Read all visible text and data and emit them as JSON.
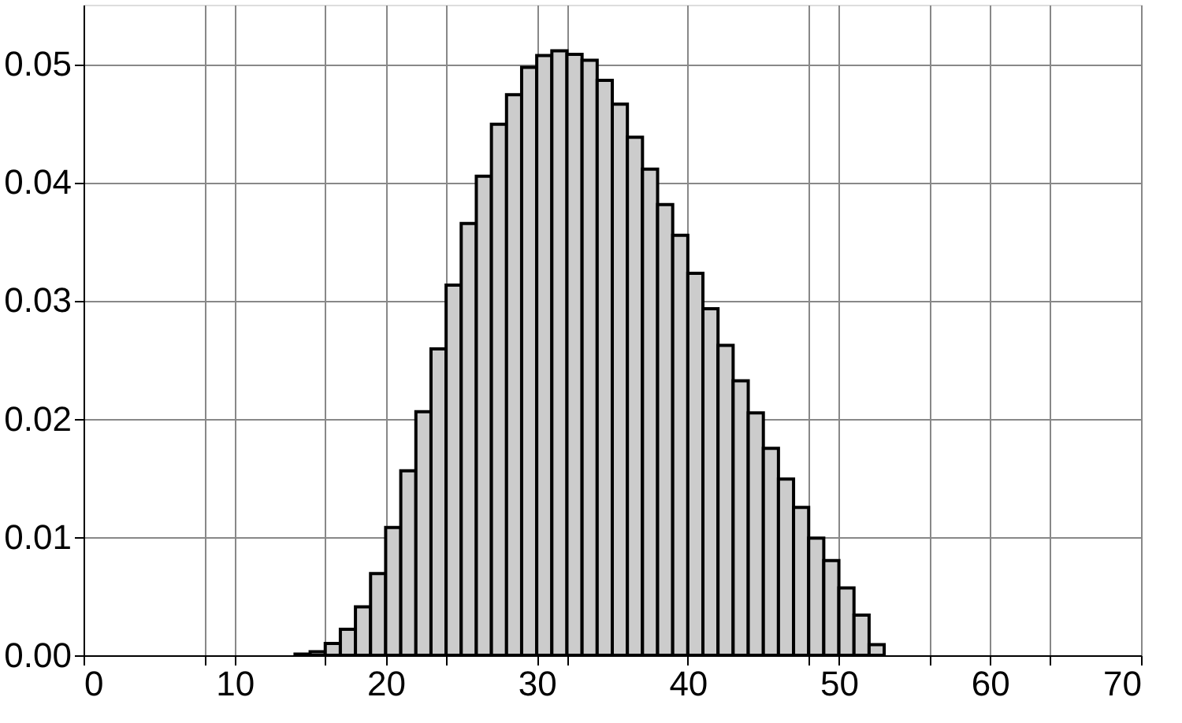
{
  "chart_data": {
    "type": "histogram",
    "bins": [
      0,
      1,
      2,
      3,
      4,
      5,
      6,
      7,
      8,
      9,
      10,
      11,
      12,
      13,
      14,
      15,
      16,
      17,
      18,
      19,
      20,
      21,
      22,
      23,
      24,
      25,
      26,
      27,
      28,
      29,
      30,
      31,
      32,
      33,
      34,
      35,
      36,
      37,
      38,
      39,
      40,
      41,
      42,
      43,
      44,
      45,
      46,
      47,
      48,
      49,
      50,
      51,
      52,
      53,
      54,
      55,
      56,
      57,
      58,
      59,
      60,
      61,
      62,
      63,
      64,
      65,
      66,
      67,
      68,
      69,
      70
    ],
    "values": [
      0,
      0,
      0,
      0,
      0,
      0,
      0,
      0,
      0,
      0,
      0,
      0,
      0,
      0,
      0.0001,
      0.0003,
      0.001,
      0.0022,
      0.0041,
      0.0069,
      0.0108,
      0.0156,
      0.0206,
      0.0259,
      0.0313,
      0.0365,
      0.0405,
      0.0449,
      0.0474,
      0.0497,
      0.0507,
      0.0511,
      0.0508,
      0.0503,
      0.0486,
      0.0466,
      0.0438,
      0.0411,
      0.0381,
      0.0355,
      0.0323,
      0.0293,
      0.0262,
      0.0232,
      0.0205,
      0.0175,
      0.0149,
      0.0125,
      0.0099,
      0.008,
      0.0057,
      0.0034,
      0.0009,
      0,
      0,
      0,
      0,
      0,
      0,
      0,
      0,
      0,
      0,
      0,
      0,
      0,
      0,
      0,
      0,
      0
    ],
    "color": "#cccccc",
    "xlim": [
      0,
      70
    ],
    "xticks": [
      0,
      10,
      20,
      30,
      40,
      50,
      60,
      70,
      {
        "value": 8,
        "label": null
      },
      {
        "value": 16,
        "label": null
      },
      {
        "value": 24,
        "label": null
      },
      {
        "value": 32,
        "label": null
      },
      {
        "value": 40,
        "label": null
      },
      {
        "value": 48,
        "label": null
      },
      {
        "value": 56,
        "label": null
      },
      {
        "value": 64,
        "label": null
      }
    ],
    "ylim": [
      0,
      0.055
    ],
    "yticks": [
      {
        "value": 0,
        "label": "0.00"
      },
      {
        "value": 0.01,
        "label": "0.01"
      },
      {
        "value": 0.02,
        "label": "0.02"
      },
      {
        "value": 0.03,
        "label": "0.03"
      },
      {
        "value": 0.04,
        "label": "0.04"
      },
      {
        "value": 0.05,
        "label": "0.05"
      }
    ],
    "grid": true
  }
}
